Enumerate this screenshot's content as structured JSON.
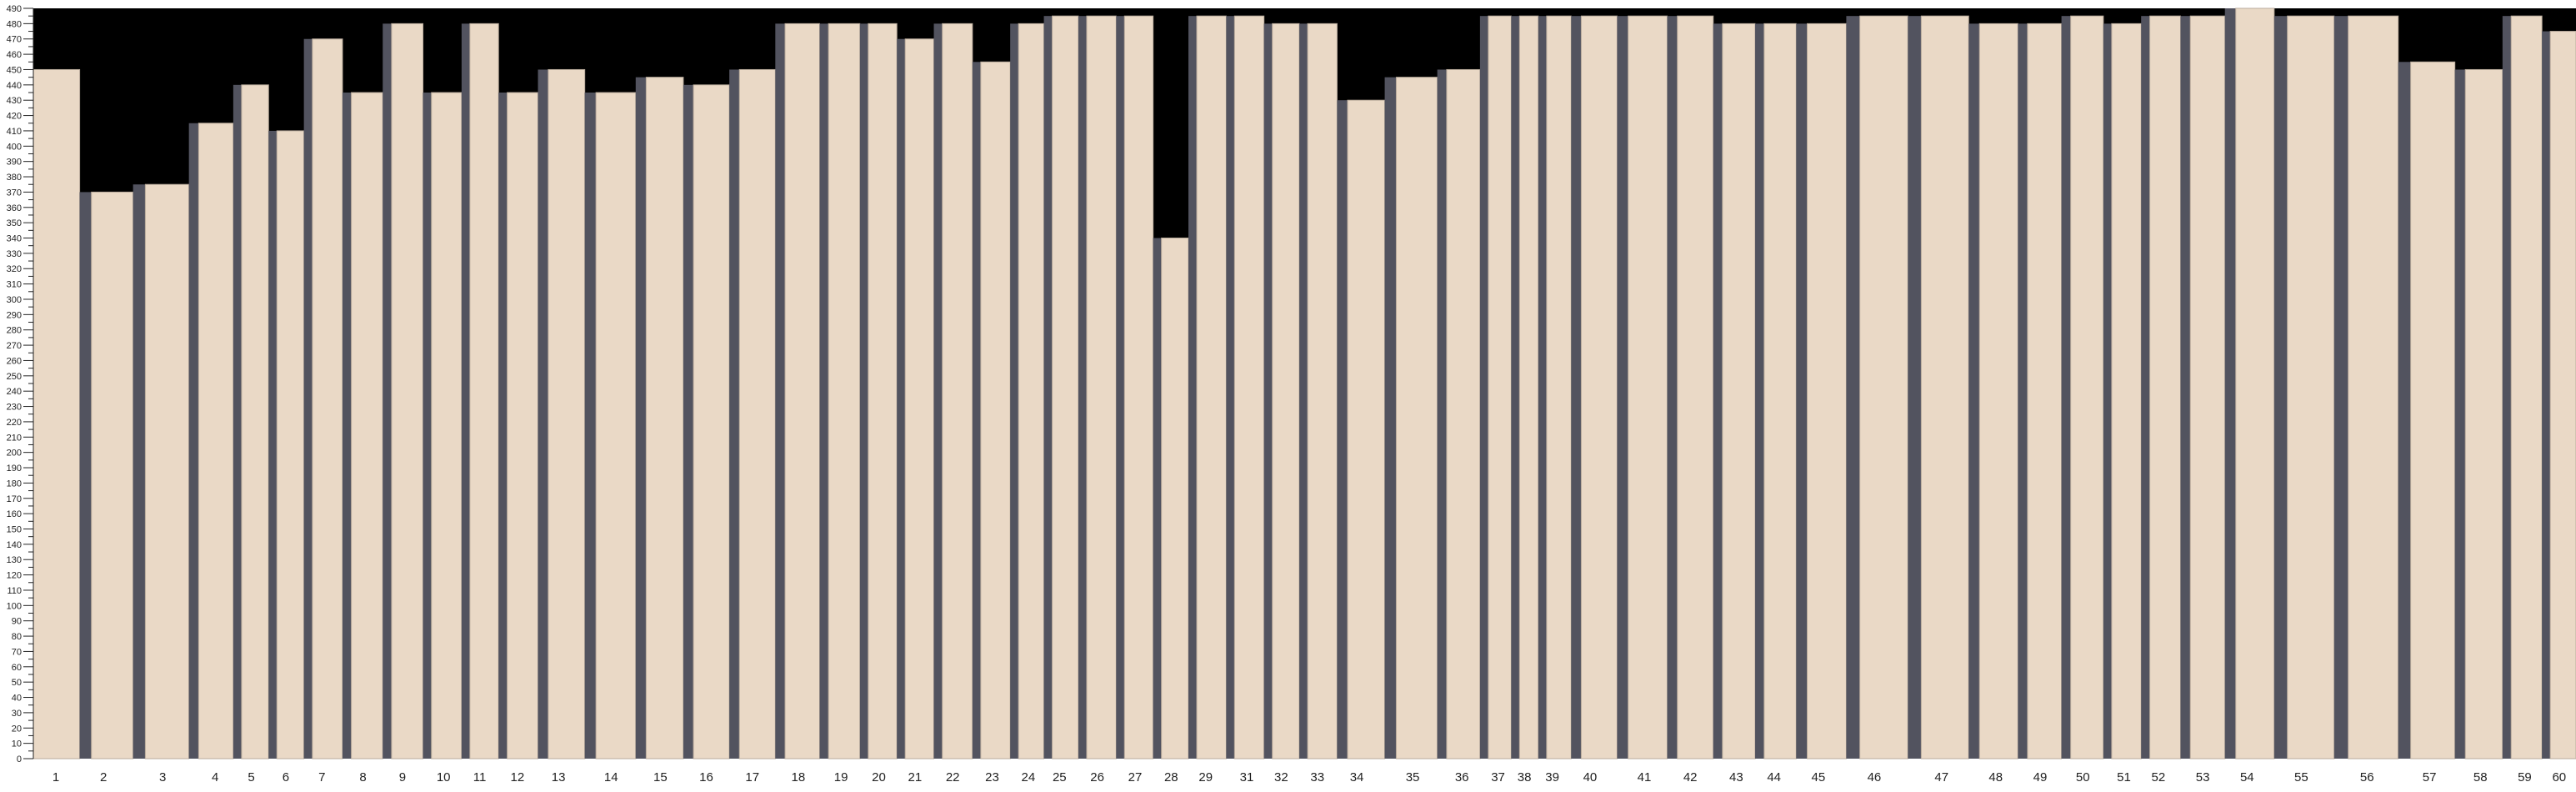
{
  "chart_data": {
    "type": "bar",
    "title": "",
    "xlabel": "",
    "ylabel": "",
    "ylim": [
      0,
      490
    ],
    "y_tick_step": 10,
    "grid": false,
    "legend": "none",
    "categories": [
      "1",
      "2",
      "3",
      "4",
      "5",
      "6",
      "7",
      "8",
      "9",
      "10",
      "11",
      "12",
      "13",
      "14",
      "15",
      "16",
      "17",
      "18",
      "19",
      "20",
      "21",
      "22",
      "23",
      "24",
      "25",
      "26",
      "27",
      "28",
      "29",
      "31",
      "32",
      "33",
      "34",
      "35",
      "36",
      "37",
      "38",
      "39",
      "40",
      "41",
      "42",
      "43",
      "44",
      "45",
      "46",
      "47",
      "48",
      "49",
      "50",
      "51",
      "52",
      "53",
      "54",
      "55",
      "56",
      "57",
      "58",
      "59",
      "60"
    ],
    "values": [
      450,
      370,
      375,
      415,
      440,
      410,
      470,
      435,
      480,
      435,
      480,
      435,
      450,
      435,
      445,
      440,
      450,
      480,
      480,
      480,
      470,
      480,
      455,
      480,
      485,
      485,
      485,
      340,
      485,
      485,
      480,
      480,
      430,
      445,
      450,
      485,
      485,
      485,
      485,
      485,
      485,
      480,
      480,
      480,
      485,
      485,
      480,
      480,
      485,
      480,
      485,
      485,
      490,
      485,
      485,
      455,
      450,
      485,
      475
    ],
    "colors": {
      "plank": "#ead9c6",
      "gap": "#52535f",
      "background": "#000000"
    }
  }
}
